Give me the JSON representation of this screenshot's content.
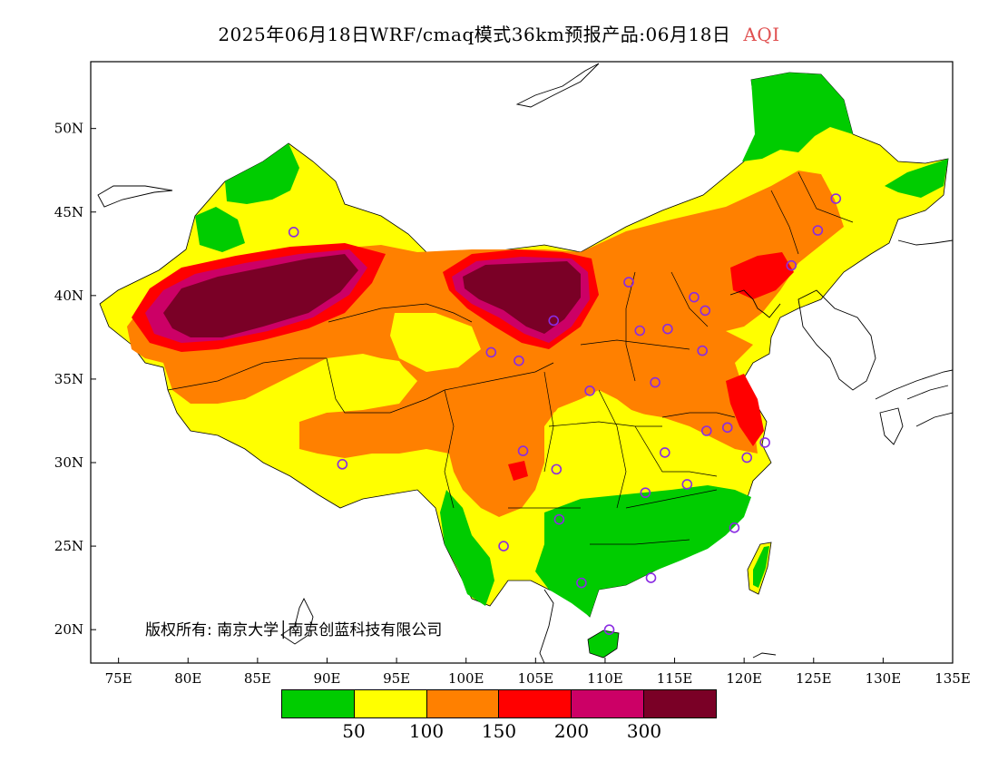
{
  "title": {
    "text": "2025年06月18日WRF/cmaq模式36km预报产品:06月18日",
    "variable": "AQI"
  },
  "copyright": "版权所有: 南京大学│南京创蓝科技有限公司",
  "axes": {
    "x_ticks": [
      "75E",
      "80E",
      "85E",
      "90E",
      "95E",
      "100E",
      "105E",
      "110E",
      "115E",
      "120E",
      "125E",
      "130E",
      "135E"
    ],
    "y_ticks": [
      "20N",
      "25N",
      "30N",
      "35N",
      "40N",
      "45N",
      "50N"
    ],
    "lon_range": [
      73,
      135
    ],
    "lat_range": [
      18,
      54
    ]
  },
  "legend": {
    "colors": [
      "#00cc00",
      "#ffff00",
      "#ff8000",
      "#ff0000",
      "#cc0066",
      "#7a0026"
    ],
    "labels": [
      "50",
      "100",
      "150",
      "200",
      "300"
    ]
  },
  "regions": [
    {
      "name": "tarim-basin",
      "level": 6
    },
    {
      "name": "alxa-desert",
      "level": 6
    },
    {
      "name": "south-china",
      "level": 1
    },
    {
      "name": "northeast-china",
      "level": 1
    }
  ],
  "stations": [
    [
      87.6,
      43.8
    ],
    [
      91.1,
      29.9
    ],
    [
      101.8,
      36.6
    ],
    [
      103.8,
      36.1
    ],
    [
      106.3,
      38.5
    ],
    [
      111.7,
      40.8
    ],
    [
      112.5,
      37.9
    ],
    [
      114.5,
      38.0
    ],
    [
      116.4,
      39.9
    ],
    [
      117.2,
      39.1
    ],
    [
      123.4,
      41.8
    ],
    [
      125.3,
      43.9
    ],
    [
      126.6,
      45.8
    ],
    [
      117.0,
      36.7
    ],
    [
      113.6,
      34.8
    ],
    [
      108.9,
      34.3
    ],
    [
      104.1,
      30.7
    ],
    [
      106.5,
      29.6
    ],
    [
      106.7,
      26.6
    ],
    [
      102.7,
      25.0
    ],
    [
      108.3,
      22.8
    ],
    [
      113.3,
      23.1
    ],
    [
      110.3,
      20.0
    ],
    [
      112.9,
      28.2
    ],
    [
      114.3,
      30.6
    ],
    [
      115.9,
      28.7
    ],
    [
      117.3,
      31.9
    ],
    [
      118.8,
      32.1
    ],
    [
      120.2,
      30.3
    ],
    [
      121.5,
      31.2
    ],
    [
      119.3,
      26.1
    ]
  ]
}
